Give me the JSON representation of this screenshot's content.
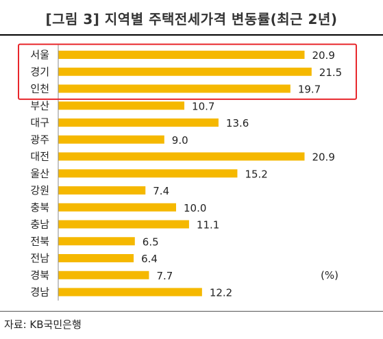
{
  "title": "[그림 3] 지역별 주택전세가격 변동률(최근 2년)",
  "source": "자료: KB국민은행",
  "chart_data": {
    "type": "bar",
    "orientation": "horizontal",
    "title": "[그림 3] 지역별 주택전세가격 변동률(최근 2년)",
    "categories": [
      "서울",
      "경기",
      "인천",
      "부산",
      "대구",
      "광주",
      "대전",
      "울산",
      "강원",
      "충북",
      "충남",
      "전북",
      "전남",
      "경북",
      "경남"
    ],
    "values": [
      20.9,
      21.5,
      19.7,
      10.7,
      13.6,
      9.0,
      20.9,
      15.2,
      7.4,
      10.0,
      11.1,
      6.5,
      6.4,
      7.7,
      12.2
    ],
    "value_labels": [
      "20.9",
      "21.5",
      "19.7",
      "10.7",
      "13.6",
      "9.0",
      "20.9",
      "15.2",
      "7.4",
      "10.0",
      "11.1",
      "6.5",
      "6.4",
      "7.7",
      "12.2"
    ],
    "unit": "(%)",
    "bar_color": "#F5B800",
    "highlight": {
      "categories": [
        "서울",
        "경기",
        "인천"
      ],
      "color": "#E8262B"
    },
    "xlabel": "",
    "ylabel": "",
    "grid": false,
    "legend": "none"
  }
}
